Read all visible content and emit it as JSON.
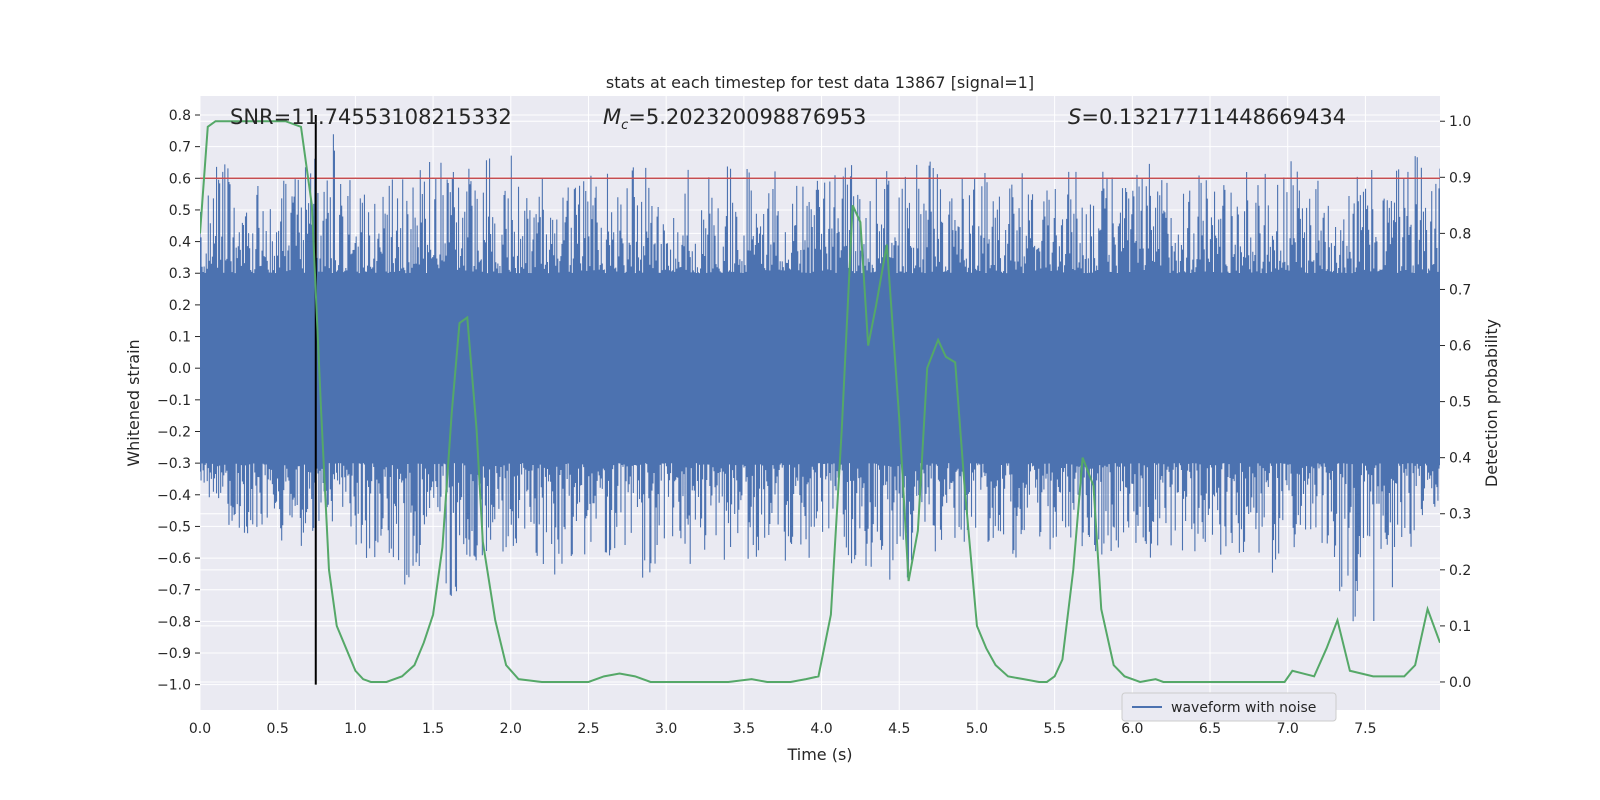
{
  "chart_data": {
    "type": "line",
    "title": "stats at each timestep for test data 13867 [signal=1]",
    "xlabel": "Time (s)",
    "ylabel_left": "Whitened strain",
    "ylabel_right": "Detection probability",
    "xlim": [
      0.0,
      7.98
    ],
    "ylim_left": [
      -1.08,
      0.86
    ],
    "ylim_right": [
      -0.05,
      1.045
    ],
    "x_ticks": [
      0.0,
      0.5,
      1.0,
      1.5,
      2.0,
      2.5,
      3.0,
      3.5,
      4.0,
      4.5,
      5.0,
      5.5,
      6.0,
      6.5,
      7.0,
      7.5
    ],
    "x_tick_labels": [
      "0.0",
      "0.5",
      "1.0",
      "1.5",
      "2.0",
      "2.5",
      "3.0",
      "3.5",
      "4.0",
      "4.5",
      "5.0",
      "5.5",
      "6.0",
      "6.5",
      "7.0",
      "7.5"
    ],
    "y_left_ticks": [
      0.8,
      0.7,
      0.6,
      0.5,
      0.4,
      0.3,
      0.2,
      0.1,
      0.0,
      -0.1,
      -0.2,
      -0.3,
      -0.4,
      -0.5,
      -0.6,
      -0.7,
      -0.8,
      -0.9,
      -1.0
    ],
    "y_left_tick_labels": [
      "0.8",
      "0.7",
      "0.6",
      "0.5",
      "0.4",
      "0.3",
      "0.2",
      "0.1",
      "0.0",
      "−0.1",
      "−0.2",
      "−0.3",
      "−0.4",
      "−0.5",
      "−0.6",
      "−0.7",
      "−0.8",
      "−0.9",
      "−1.0"
    ],
    "y_right_ticks": [
      1.0,
      0.9,
      0.8,
      0.7,
      0.6,
      0.5,
      0.4,
      0.3,
      0.2,
      0.1,
      0.0
    ],
    "y_right_tick_labels": [
      "1.0",
      "0.9",
      "0.8",
      "0.7",
      "0.6",
      "0.5",
      "0.4",
      "0.3",
      "0.2",
      "0.1",
      "0.0"
    ],
    "grid": true,
    "legend_location": "lower-right",
    "annotations": {
      "snr": "SNR=11.74553108215332",
      "mc_symbol": "M",
      "mc_subscript": "c",
      "mc_value": "=5.202320098876953",
      "s_symbol": "S",
      "s_value": "=0.13217711448669434"
    },
    "threshold": {
      "value": 0.6,
      "color": "#c44e52"
    },
    "marker_line": {
      "x": 0.745,
      "y_from": -1.0,
      "y_to": 0.8,
      "color": "#000000"
    },
    "series": [
      {
        "name": "waveform with noise",
        "axis": "left",
        "color": "#4c72b0",
        "envelope_x": [
          0.0,
          0.15,
          0.3,
          0.45,
          0.6,
          0.75,
          0.9,
          1.05,
          1.2,
          1.35,
          1.5,
          1.65,
          1.8,
          1.95,
          2.1,
          2.25,
          2.4,
          2.55,
          2.7,
          2.85,
          3.0,
          3.15,
          3.3,
          3.45,
          3.6,
          3.75,
          3.9,
          4.05,
          4.2,
          4.35,
          4.5,
          4.65,
          4.8,
          4.95,
          5.1,
          5.25,
          5.4,
          5.55,
          5.7,
          5.85,
          6.0,
          6.15,
          6.3,
          6.45,
          6.6,
          6.75,
          6.9,
          7.05,
          7.2,
          7.35,
          7.5,
          7.65,
          7.8,
          7.95
        ],
        "envelope_max": [
          0.62,
          0.72,
          0.58,
          0.6,
          0.65,
          0.68,
          0.8,
          0.6,
          0.62,
          0.64,
          0.66,
          0.63,
          0.66,
          0.72,
          0.6,
          0.64,
          0.62,
          0.65,
          0.63,
          0.66,
          0.61,
          0.64,
          0.63,
          0.66,
          0.62,
          0.64,
          0.6,
          0.62,
          0.65,
          0.66,
          0.64,
          0.68,
          0.62,
          0.66,
          0.6,
          0.63,
          0.62,
          0.66,
          0.6,
          0.64,
          0.62,
          0.66,
          0.63,
          0.65,
          0.64,
          0.62,
          0.63,
          0.66,
          0.6,
          0.64,
          0.63,
          0.62,
          0.76,
          0.65
        ],
        "envelope_min": [
          -0.36,
          -0.48,
          -0.55,
          -0.5,
          -0.6,
          -0.65,
          -0.55,
          -0.65,
          -0.6,
          -0.72,
          -0.6,
          -0.84,
          -0.6,
          -0.58,
          -0.55,
          -0.73,
          -0.6,
          -0.63,
          -0.6,
          -0.68,
          -0.6,
          -0.62,
          -0.6,
          -0.63,
          -0.6,
          -0.62,
          -0.6,
          -0.6,
          -0.62,
          -0.68,
          -0.7,
          -0.6,
          -0.58,
          -0.6,
          -0.55,
          -0.6,
          -0.56,
          -0.6,
          -0.58,
          -0.6,
          -0.58,
          -0.62,
          -0.6,
          -0.58,
          -0.6,
          -0.58,
          -0.67,
          -0.6,
          -0.6,
          -0.72,
          -0.98,
          -0.75,
          -0.6,
          -0.55
        ],
        "core_range": [
          -0.3,
          0.3
        ]
      },
      {
        "name": "",
        "axis": "right",
        "color": "#55a868",
        "x": [
          0.0,
          0.05,
          0.1,
          0.15,
          0.25,
          0.4,
          0.55,
          0.65,
          0.72,
          0.78,
          0.83,
          0.88,
          0.94,
          1.0,
          1.05,
          1.1,
          1.2,
          1.3,
          1.38,
          1.44,
          1.5,
          1.56,
          1.62,
          1.67,
          1.72,
          1.78,
          1.82,
          1.9,
          1.97,
          2.05,
          2.2,
          2.35,
          2.45,
          2.5,
          2.6,
          2.7,
          2.8,
          2.9,
          3.0,
          3.2,
          3.4,
          3.55,
          3.65,
          3.8,
          3.9,
          3.98,
          4.06,
          4.13,
          4.2,
          4.25,
          4.3,
          4.35,
          4.42,
          4.5,
          4.56,
          4.62,
          4.68,
          4.75,
          4.8,
          4.86,
          4.92,
          5.0,
          5.06,
          5.12,
          5.2,
          5.3,
          5.4,
          5.45,
          5.5,
          5.55,
          5.62,
          5.68,
          5.75,
          5.8,
          5.88,
          5.95,
          6.05,
          6.15,
          6.2,
          6.3,
          6.5,
          6.7,
          6.9,
          6.98,
          7.03,
          7.1,
          7.17,
          7.25,
          7.32,
          7.4,
          7.55,
          7.65,
          7.75,
          7.82,
          7.9,
          7.98
        ],
        "y": [
          0.8,
          0.99,
          1.0,
          1.0,
          1.0,
          1.0,
          1.0,
          0.99,
          0.85,
          0.48,
          0.2,
          0.1,
          0.06,
          0.02,
          0.005,
          0.0,
          0.0,
          0.01,
          0.03,
          0.07,
          0.12,
          0.24,
          0.48,
          0.64,
          0.65,
          0.45,
          0.25,
          0.11,
          0.03,
          0.005,
          0.0,
          0.0,
          0.0,
          0.0,
          0.01,
          0.015,
          0.01,
          0.0,
          0.0,
          0.0,
          0.0,
          0.005,
          0.0,
          0.0,
          0.005,
          0.01,
          0.12,
          0.45,
          0.85,
          0.82,
          0.6,
          0.67,
          0.78,
          0.47,
          0.18,
          0.27,
          0.56,
          0.61,
          0.58,
          0.57,
          0.35,
          0.1,
          0.06,
          0.03,
          0.01,
          0.005,
          0.0,
          0.0,
          0.01,
          0.04,
          0.2,
          0.4,
          0.35,
          0.13,
          0.03,
          0.01,
          0.0,
          0.005,
          0.0,
          0.0,
          0.0,
          0.0,
          0.0,
          0.0,
          0.02,
          0.015,
          0.01,
          0.06,
          0.11,
          0.02,
          0.01,
          0.01,
          0.01,
          0.03,
          0.13,
          0.07
        ]
      }
    ]
  }
}
